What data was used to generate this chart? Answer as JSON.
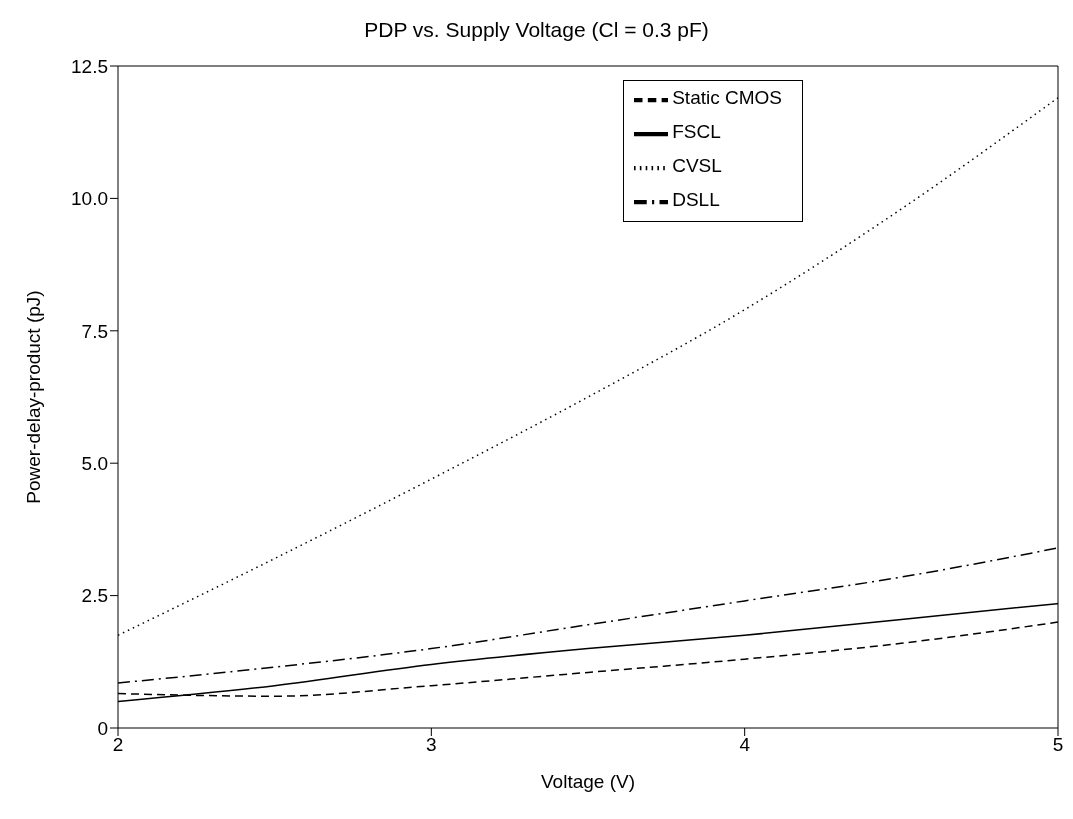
{
  "chart_data": {
    "type": "line",
    "title": "PDP vs. Supply Voltage (Cl = 0.3 pF)",
    "xlabel": "Voltage (V)",
    "ylabel": "Power-delay-product   (pJ)",
    "x": [
      2,
      2.5,
      3,
      3.5,
      4,
      4.5,
      5
    ],
    "series": [
      {
        "name": "Static CMOS",
        "color": "#000000",
        "line_style": "dashed",
        "values": [
          0.65,
          0.6,
          0.8,
          1.05,
          1.3,
          1.6,
          2.0
        ]
      },
      {
        "name": "FSCL",
        "color": "#000000",
        "line_style": "solid",
        "values": [
          0.5,
          0.8,
          1.2,
          1.5,
          1.75,
          2.05,
          2.35
        ]
      },
      {
        "name": "CVSL",
        "color": "#000000",
        "line_style": "dotted",
        "values": [
          1.75,
          3.2,
          4.7,
          6.25,
          7.9,
          9.8,
          11.9
        ]
      },
      {
        "name": "DSLL",
        "color": "#000000",
        "line_style": "dashdot",
        "values": [
          0.85,
          1.15,
          1.5,
          1.95,
          2.4,
          2.85,
          3.4
        ]
      }
    ],
    "xlim": [
      2,
      5
    ],
    "xticks": [
      2,
      3,
      4,
      5
    ],
    "ylim": [
      0,
      12.5
    ],
    "yticks": [
      0,
      2.5,
      {
        "value": 5,
        "label": "5.0"
      },
      7.5,
      {
        "value": 10,
        "label": "10.0"
      },
      12.5
    ],
    "grid": false,
    "legend": "top right",
    "marker": "none"
  }
}
